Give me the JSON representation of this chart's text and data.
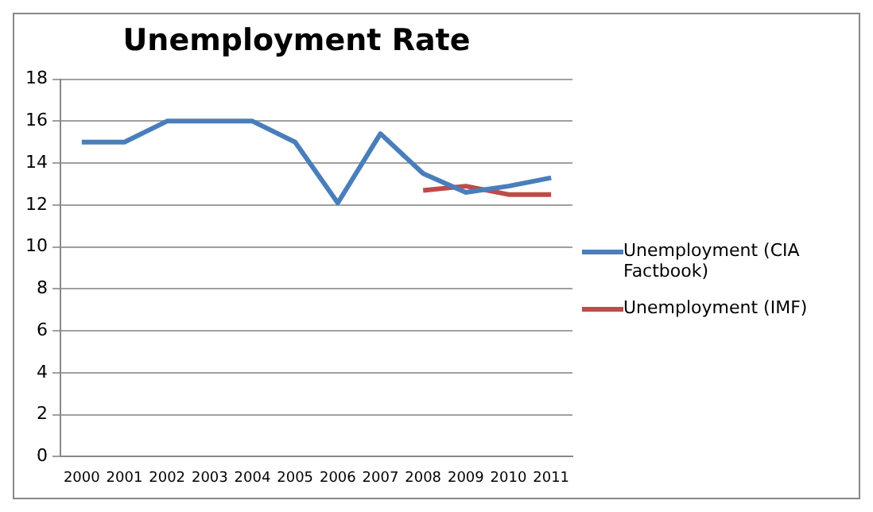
{
  "chart_data": {
    "type": "line",
    "title": "Unemployment Rate",
    "categories": [
      "2000",
      "2001",
      "2002",
      "2003",
      "2004",
      "2005",
      "2006",
      "2007",
      "2008",
      "2009",
      "2010",
      "2011"
    ],
    "series": [
      {
        "name": "Unemployment (CIA Factbook)",
        "color": "#4a7ebb",
        "values": [
          15,
          15,
          16,
          16,
          16,
          15,
          12.1,
          15.4,
          13.5,
          12.6,
          12.9,
          13.3
        ]
      },
      {
        "name": "Unemployment (IMF)",
        "color": "#be4b48",
        "values": [
          null,
          null,
          null,
          null,
          null,
          null,
          null,
          null,
          12.7,
          12.9,
          12.5,
          12.5
        ]
      }
    ],
    "ylim": [
      0,
      18
    ],
    "yticks": [
      0,
      2,
      4,
      6,
      8,
      10,
      12,
      14,
      16,
      18
    ],
    "grid": "y",
    "legend": "right",
    "marker": "none",
    "line_style": "solid"
  }
}
